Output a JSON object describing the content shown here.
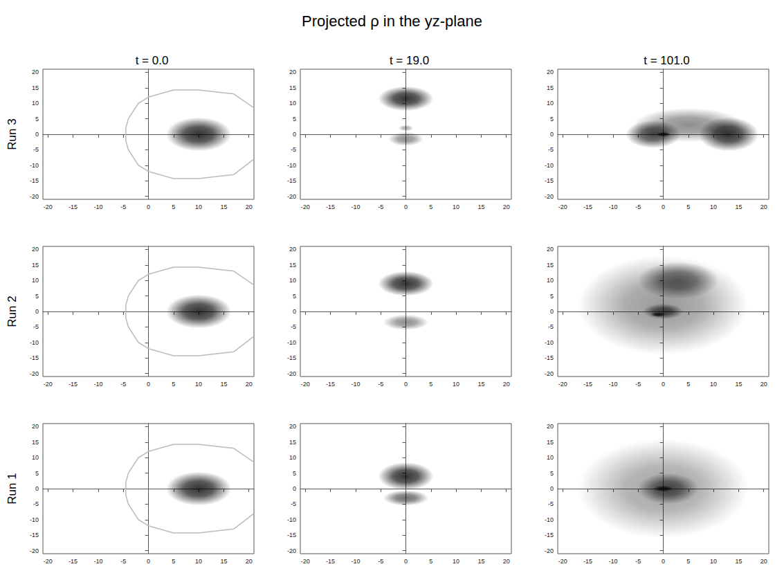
{
  "title": "Projected ρ in the yz-plane",
  "chart_data": [
    {
      "type": "scatter",
      "title": "t = 0.0",
      "ylabel": "Run 3",
      "grid": false,
      "xlim": [
        -21,
        21
      ],
      "ylim": [
        -21,
        21
      ],
      "xticks": [
        -20,
        -15,
        -10,
        -5,
        0,
        5,
        10,
        15,
        20
      ],
      "yticks": [
        -20,
        -15,
        -10,
        -5,
        0,
        5,
        10,
        15,
        20
      ],
      "series": [
        {
          "type": "line",
          "color": "#bbbbbb",
          "x": [
            21,
            17,
            10,
            5,
            0,
            -2,
            -4,
            -4.5,
            -4.5,
            -4,
            -2,
            0,
            5,
            10,
            17,
            21
          ],
          "values": [
            8.5,
            13,
            14.3,
            14.3,
            12,
            10,
            5,
            2,
            -2,
            -5,
            -10,
            -12,
            -14.3,
            -14.3,
            -13,
            -8
          ]
        },
        {
          "type": "scatter",
          "color": "#000000",
          "x": [
            10
          ],
          "values": [
            0
          ],
          "width": [
            13
          ],
          "height": [
            11
          ],
          "density": [
            1
          ]
        }
      ]
    },
    {
      "type": "scatter",
      "title": "t = 19.0",
      "grid": false,
      "xlim": [
        -21,
        21
      ],
      "ylim": [
        -21,
        21
      ],
      "xticks": [
        -20,
        -15,
        -10,
        -5,
        0,
        5,
        10,
        15,
        20
      ],
      "yticks": [
        -20,
        -15,
        -10,
        -5,
        0,
        5,
        10,
        15,
        20
      ],
      "series": [
        {
          "type": "scatter",
          "color": "#000000",
          "x": [
            0,
            0,
            0
          ],
          "values": [
            11.5,
            -1.5,
            2
          ],
          "width": [
            11,
            7,
            3
          ],
          "height": [
            8,
            4.5,
            2
          ],
          "density": [
            1,
            0.55,
            0.4
          ]
        }
      ]
    },
    {
      "type": "scatter",
      "title": "t = 101.0",
      "grid": false,
      "xlim": [
        -21,
        21
      ],
      "ylim": [
        -21,
        21
      ],
      "xticks": [
        -20,
        -15,
        -10,
        -5,
        0,
        5,
        10,
        15,
        20
      ],
      "yticks": [
        -20,
        -15,
        -10,
        -5,
        0,
        5,
        10,
        15,
        20
      ],
      "series": [
        {
          "type": "scatter",
          "color": "#000000",
          "x": [
            5,
            13,
            -2,
            0
          ],
          "values": [
            3,
            0,
            0,
            0
          ],
          "width": [
            22,
            12,
            11,
            3
          ],
          "height": [
            11,
            11,
            9,
            1.5
          ],
          "density": [
            0.55,
            1,
            0.9,
            1
          ]
        }
      ]
    },
    {
      "type": "scatter",
      "ylabel": "Run 2",
      "grid": false,
      "xlim": [
        -21,
        21
      ],
      "ylim": [
        -21,
        21
      ],
      "xticks": [
        -20,
        -15,
        -10,
        -5,
        0,
        5,
        10,
        15,
        20
      ],
      "yticks": [
        -20,
        -15,
        -10,
        -5,
        0,
        5,
        10,
        15,
        20
      ],
      "series": [
        {
          "type": "line",
          "color": "#bbbbbb",
          "x": [
            21,
            17,
            10,
            5,
            0,
            -2,
            -4,
            -4.5,
            -4.5,
            -4,
            -2,
            0,
            5,
            10,
            17,
            21
          ],
          "values": [
            8.5,
            13,
            14.3,
            14.3,
            12,
            10,
            5,
            2,
            -2,
            -5,
            -10,
            -12,
            -14.3,
            -14.3,
            -13,
            -8
          ]
        },
        {
          "type": "scatter",
          "color": "#000000",
          "x": [
            10
          ],
          "values": [
            0
          ],
          "width": [
            13
          ],
          "height": [
            11
          ],
          "density": [
            1
          ]
        }
      ]
    },
    {
      "type": "scatter",
      "grid": false,
      "xlim": [
        -21,
        21
      ],
      "ylim": [
        -21,
        21
      ],
      "xticks": [
        -20,
        -15,
        -10,
        -5,
        0,
        5,
        10,
        15,
        20
      ],
      "yticks": [
        -20,
        -15,
        -10,
        -5,
        0,
        5,
        10,
        15,
        20
      ],
      "series": [
        {
          "type": "scatter",
          "color": "#000000",
          "x": [
            0,
            0
          ],
          "values": [
            9,
            -3.5
          ],
          "width": [
            11,
            9
          ],
          "height": [
            8,
            5
          ],
          "density": [
            1,
            0.55
          ]
        }
      ]
    },
    {
      "type": "scatter",
      "grid": false,
      "xlim": [
        -21,
        21
      ],
      "ylim": [
        -21,
        21
      ],
      "xticks": [
        -20,
        -15,
        -10,
        -5,
        0,
        5,
        10,
        15,
        20
      ],
      "yticks": [
        -20,
        -15,
        -10,
        -5,
        0,
        5,
        10,
        15,
        20
      ],
      "series": [
        {
          "type": "scatter",
          "color": "#000000",
          "x": [
            0,
            3,
            0,
            -1
          ],
          "values": [
            2,
            10,
            0,
            -1
          ],
          "width": [
            34,
            16,
            8,
            3
          ],
          "height": [
            32,
            12,
            5,
            1.5
          ],
          "density": [
            0.5,
            0.7,
            0.8,
            1
          ]
        }
      ]
    },
    {
      "type": "scatter",
      "ylabel": "Run 1",
      "grid": false,
      "xlim": [
        -21,
        21
      ],
      "ylim": [
        -21,
        21
      ],
      "xticks": [
        -20,
        -15,
        -10,
        -5,
        0,
        5,
        10,
        15,
        20
      ],
      "yticks": [
        -20,
        -15,
        -10,
        -5,
        0,
        5,
        10,
        15,
        20
      ],
      "series": [
        {
          "type": "line",
          "color": "#bbbbbb",
          "x": [
            21,
            17,
            10,
            5,
            0,
            -2,
            -4,
            -4.5,
            -4.5,
            -4,
            -2,
            0,
            5,
            10,
            17,
            21
          ],
          "values": [
            8.5,
            13,
            14.3,
            14.3,
            12,
            10,
            5,
            2,
            -2,
            -5,
            -10,
            -12,
            -14.3,
            -14.3,
            -13,
            -8
          ]
        },
        {
          "type": "scatter",
          "color": "#000000",
          "x": [
            10
          ],
          "values": [
            0
          ],
          "width": [
            13
          ],
          "height": [
            11
          ],
          "density": [
            1
          ]
        }
      ]
    },
    {
      "type": "scatter",
      "grid": false,
      "xlim": [
        -21,
        21
      ],
      "ylim": [
        -21,
        21
      ],
      "xticks": [
        -20,
        -15,
        -10,
        -5,
        0,
        5,
        10,
        15,
        20
      ],
      "yticks": [
        -20,
        -15,
        -10,
        -5,
        0,
        5,
        10,
        15,
        20
      ],
      "series": [
        {
          "type": "scatter",
          "color": "#000000",
          "x": [
            0,
            0
          ],
          "values": [
            4,
            -3
          ],
          "width": [
            11,
            9
          ],
          "height": [
            9,
            5
          ],
          "density": [
            1,
            0.7
          ]
        }
      ]
    },
    {
      "type": "scatter",
      "grid": false,
      "xlim": [
        -21,
        21
      ],
      "ylim": [
        -21,
        21
      ],
      "xticks": [
        -20,
        -15,
        -10,
        -5,
        0,
        5,
        10,
        15,
        20
      ],
      "yticks": [
        -20,
        -15,
        -10,
        -5,
        0,
        5,
        10,
        15,
        20
      ],
      "series": [
        {
          "type": "scatter",
          "color": "#000000",
          "x": [
            0,
            1,
            0
          ],
          "values": [
            0,
            0,
            0
          ],
          "width": [
            34,
            12,
            4
          ],
          "height": [
            32,
            10,
            2
          ],
          "density": [
            0.45,
            0.75,
            1
          ]
        }
      ]
    }
  ]
}
